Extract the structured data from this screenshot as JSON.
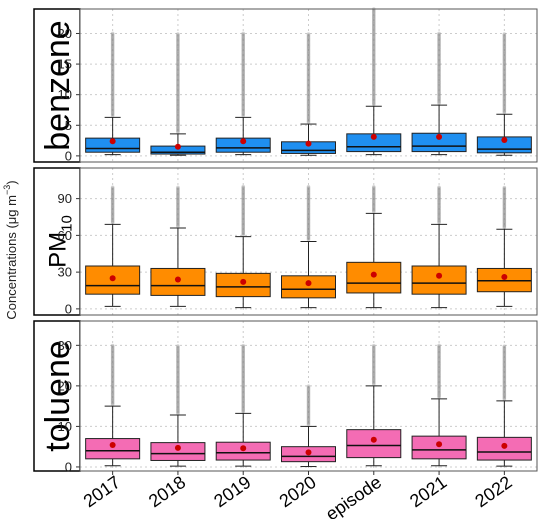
{
  "chart_data": {
    "type": "box",
    "categories": [
      "2017",
      "2018",
      "2019",
      "2020",
      "episode",
      "2021",
      "2022"
    ],
    "ylabel_main": "Concentrations (μg m",
    "ylabel_exp": "−3",
    "ylabel_close": ")",
    "colors": {
      "benzene": "#1f8ff0",
      "pm10": "#ff8c00",
      "toluene": "#f46cb4",
      "mean": "#cc0000",
      "outlier": "#888888",
      "grid": "#cccccc"
    },
    "panels": [
      {
        "name": "benzene",
        "label": "benzene",
        "label_sub": "",
        "ylim": [
          -1,
          24
        ],
        "yticks": [
          0,
          5,
          10,
          15,
          20
        ],
        "ytick_labels": [
          "0",
          "5",
          "10",
          "15",
          "20"
        ],
        "fill": "#1f8ff0",
        "boxes": [
          {
            "low": 0.2,
            "q1": 0.6,
            "median": 1.2,
            "q3": 2.9,
            "high": 6.3,
            "mean": 2.4,
            "out_max": 20
          },
          {
            "low": 0.1,
            "q1": 0.3,
            "median": 0.6,
            "q3": 1.6,
            "high": 3.6,
            "mean": 1.5,
            "out_max": 20
          },
          {
            "low": 0.2,
            "q1": 0.6,
            "median": 1.3,
            "q3": 2.9,
            "high": 6.3,
            "mean": 2.4,
            "out_max": 20
          },
          {
            "low": 0.1,
            "q1": 0.4,
            "median": 0.9,
            "q3": 2.3,
            "high": 5.2,
            "mean": 2.0,
            "out_max": 20
          },
          {
            "low": 0.2,
            "q1": 0.7,
            "median": 1.5,
            "q3": 3.6,
            "high": 8.1,
            "mean": 3.1,
            "out_max": 24
          },
          {
            "low": 0.2,
            "q1": 0.7,
            "median": 1.6,
            "q3": 3.7,
            "high": 8.3,
            "mean": 3.1,
            "out_max": 20
          },
          {
            "low": 0.1,
            "q1": 0.5,
            "median": 1.1,
            "q3": 3.1,
            "high": 6.8,
            "mean": 2.6,
            "out_max": 20
          }
        ]
      },
      {
        "name": "pm10",
        "label": "PM",
        "label_sub": "10",
        "ylim": [
          -5,
          115
        ],
        "yticks": [
          0,
          30,
          60,
          90
        ],
        "ytick_labels": [
          "0",
          "30",
          "60",
          "90"
        ],
        "fill": "#ff8c00",
        "boxes": [
          {
            "low": 2,
            "q1": 12,
            "median": 19,
            "q3": 35,
            "high": 69,
            "mean": 25,
            "out_max": 100
          },
          {
            "low": 2,
            "q1": 11,
            "median": 19,
            "q3": 33,
            "high": 66,
            "mean": 24,
            "out_max": 100
          },
          {
            "low": 1,
            "q1": 10,
            "median": 18,
            "q3": 29,
            "high": 59,
            "mean": 22,
            "out_max": 100
          },
          {
            "low": 1,
            "q1": 9,
            "median": 16,
            "q3": 27,
            "high": 55,
            "mean": 21,
            "out_max": 100
          },
          {
            "low": 1,
            "q1": 13,
            "median": 21,
            "q3": 38,
            "high": 78,
            "mean": 28,
            "out_max": 100
          },
          {
            "low": 1,
            "q1": 12,
            "median": 21,
            "q3": 35,
            "high": 69,
            "mean": 27,
            "out_max": 100
          },
          {
            "low": 2,
            "q1": 14,
            "median": 23,
            "q3": 33,
            "high": 65,
            "mean": 26,
            "out_max": 100
          }
        ]
      },
      {
        "name": "toluene",
        "label": "toluene",
        "label_sub": "",
        "ylim": [
          -1,
          36
        ],
        "yticks": [
          0,
          10,
          20,
          30
        ],
        "ytick_labels": [
          "0",
          "10",
          "20",
          "30"
        ],
        "fill": "#f46cb4",
        "boxes": [
          {
            "low": 0.3,
            "q1": 2.0,
            "median": 4.0,
            "q3": 7.0,
            "high": 15.0,
            "mean": 5.4,
            "out_max": 30
          },
          {
            "low": 0.2,
            "q1": 1.6,
            "median": 3.3,
            "q3": 6.0,
            "high": 12.8,
            "mean": 4.7,
            "out_max": 30
          },
          {
            "low": 0.2,
            "q1": 1.7,
            "median": 3.5,
            "q3": 6.1,
            "high": 13.2,
            "mean": 4.6,
            "out_max": 30
          },
          {
            "low": 0.1,
            "q1": 1.3,
            "median": 2.6,
            "q3": 5.0,
            "high": 10.0,
            "mean": 3.6,
            "out_max": 20
          },
          {
            "low": 0.3,
            "q1": 2.3,
            "median": 5.3,
            "q3": 9.2,
            "high": 20.0,
            "mean": 6.7,
            "out_max": 30
          },
          {
            "low": 0.3,
            "q1": 2.0,
            "median": 4.2,
            "q3": 7.6,
            "high": 16.8,
            "mean": 5.6,
            "out_max": 30
          },
          {
            "low": 0.2,
            "q1": 1.7,
            "median": 3.7,
            "q3": 7.3,
            "high": 16.3,
            "mean": 5.2,
            "out_max": 30
          }
        ]
      }
    ]
  }
}
